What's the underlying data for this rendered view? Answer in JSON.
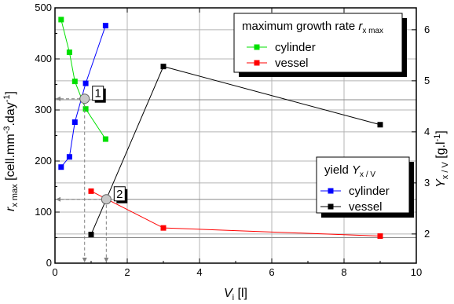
{
  "chart_data": {
    "type": "line",
    "xlabel": {
      "main": "V",
      "sub": "i",
      "unit": " [l]"
    },
    "ylabel_left": {
      "main": "r",
      "sub": "x max",
      "unit": " [cell.mm",
      "exp1": "-3",
      "mid": ".day",
      "exp2": "-1",
      "end": "]"
    },
    "ylabel_right": {
      "main": "Y",
      "sub": "x / V",
      "unit": " [g.l",
      "exp": "-1",
      "end": "]"
    },
    "xlim": [
      0,
      10
    ],
    "ylim_left": [
      0,
      500
    ],
    "ylim_right": [
      1.4285714,
      6.4285714
    ],
    "x_ticks": [
      0,
      2,
      4,
      6,
      8,
      10
    ],
    "x_tick_labels": [
      "0",
      "2",
      "4",
      "6",
      "8",
      "10"
    ],
    "y_left_ticks": [
      0,
      100,
      200,
      300,
      400,
      500
    ],
    "y_left_tick_labels": [
      "0",
      "100",
      "200",
      "300",
      "400",
      "500"
    ],
    "y_right_ticks": [
      2,
      3,
      4,
      5,
      6
    ],
    "y_right_tick_labels": [
      "2",
      "3",
      "4",
      "5",
      "6"
    ],
    "grid": true,
    "legends": [
      {
        "title": {
          "text": "maximum growth rate ",
          "italic": "r",
          "sub": "x max"
        },
        "position": "top-right",
        "entries": [
          {
            "name": "cylinder",
            "color": "#00e000"
          },
          {
            "name": "vessel",
            "color": "#ff0000"
          }
        ]
      },
      {
        "title": {
          "text": "yield ",
          "italic": "Y",
          "sub": "x / V"
        },
        "position": "center-right",
        "entries": [
          {
            "name": "cylinder",
            "color": "#0000ff"
          },
          {
            "name": "vessel",
            "color": "#000000"
          }
        ]
      }
    ],
    "series": [
      {
        "name": "cylinder",
        "group": "maximum growth rate",
        "axis": "left",
        "color": "#00e000",
        "x": [
          0.17,
          0.4,
          0.55,
          0.85,
          1.4
        ],
        "y": [
          477,
          413,
          356,
          302,
          243
        ]
      },
      {
        "name": "vessel",
        "group": "maximum growth rate",
        "axis": "left",
        "color": "#ff0000",
        "x": [
          1.0,
          3.0,
          9.0
        ],
        "y": [
          141,
          69,
          53
        ]
      },
      {
        "name": "cylinder",
        "group": "yield",
        "axis": "right",
        "color": "#0000ff",
        "x": [
          0.17,
          0.4,
          0.55,
          0.85,
          1.4
        ],
        "y": [
          3.31,
          3.51,
          4.19,
          4.95,
          6.08
        ]
      },
      {
        "name": "vessel",
        "group": "yield",
        "axis": "right",
        "color": "#000000",
        "x": [
          1.0,
          3.0,
          9.0
        ],
        "y": [
          1.99,
          5.28,
          4.14
        ]
      }
    ],
    "markers": [
      {
        "label": "1",
        "x": 0.82,
        "y": 322
      },
      {
        "label": "2",
        "x": 1.42,
        "y": 125
      }
    ],
    "reference_lines_y": [
      50,
      125,
      320
    ]
  }
}
